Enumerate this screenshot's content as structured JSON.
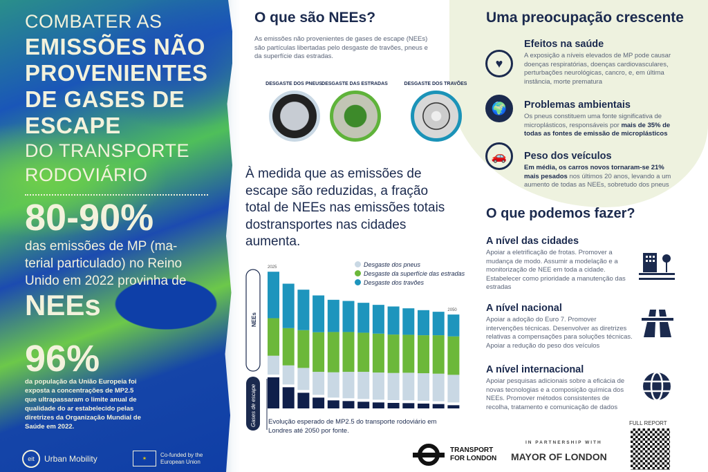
{
  "left": {
    "title_light_1": "COMBATER AS",
    "title_bold": [
      "EMISSÕES NÃO",
      "PROVENIENTES",
      "DE GASES DE",
      "ESCAPE"
    ],
    "title_light_2": "DO TRANSPORTE",
    "title_light_3": "RODOVIÁRIO",
    "stat1_value": "80-90%",
    "stat1_text": "das emissões de MP (ma-terial particulado) no Reino Unido em 2022 provinha de",
    "stat1_tail": "NEEs",
    "stat2_value": "96%",
    "stat2_text": "da população da União Europeia foi exposta a concentrações de MP2.5 que ultrapassaram o limite anual de qualidade do ar estabelecido pelas diretrizes da Organização Mundial de Saúde em 2022.",
    "logo_eit": "eit",
    "logo_urban": "Urban Mobility",
    "eu_text": "Co-funded by the European Union"
  },
  "middle": {
    "title": "O que são NEEs?",
    "desc": "As emissões não provenientes de gases de escape (NEEs) são partículas libertadas pelo desgaste de travões, pneus e da superfície das estradas.",
    "sources": [
      {
        "label": "DESGASTE DOS PNEUS",
        "ring": "#c9d8e4"
      },
      {
        "label": "DESGASTE DAS ESTRADAS",
        "ring": "#5fb33a"
      },
      {
        "label": "DESGASTE DOS TRAVÕES",
        "ring": "#1b93b8"
      }
    ],
    "statement": "À medida que as emissões de escape são reduzidas, a fração total de NEEs nas emissões totais dostransportes nas cidades aumenta.",
    "caption": "Evolução esperado de MP2.5 do transporte rodoviário em Londres até 2050 por fonte."
  },
  "chart_data": {
    "type": "bar",
    "stacked": true,
    "categories": [
      "2025",
      "",
      "",
      "",
      "",
      "",
      "",
      "",
      "",
      "",
      "",
      "",
      "2050"
    ],
    "group_labels": [
      "NEEs",
      "Gases de escape"
    ],
    "series": [
      {
        "key": "escape",
        "color": "#0f1f4a",
        "values": [
          13.5,
          9.2,
          6.8,
          4.7,
          3.5,
          3.2,
          2.9,
          2.6,
          2.4,
          2.3,
          2.1,
          1.9,
          1.4
        ]
      },
      {
        "name": "Desgaste dos pneus",
        "color": "#c9d8e4",
        "values": [
          8.2,
          8.3,
          9.6,
          10,
          11,
          11.5,
          11.8,
          11.8,
          11.8,
          12,
          12,
          12,
          12
        ]
      },
      {
        "name": "Desgaste da superfície das estradas",
        "color": "#6cb83a",
        "values": [
          16.3,
          16.2,
          16.4,
          17.2,
          17.5,
          17.3,
          17,
          16.9,
          16.7,
          16.5,
          16.5,
          16.7,
          16.7
        ]
      },
      {
        "name": "Desgaste dos travões",
        "color": "#1e95bd",
        "values": [
          20.2,
          19.3,
          17.6,
          16,
          14,
          13.5,
          13,
          12.5,
          12.2,
          11.5,
          10.9,
          10.2,
          9.5
        ]
      }
    ],
    "legend": "top-right",
    "grid": false
  },
  "right": {
    "title": "Uma preocupação crescente",
    "items": [
      {
        "icon": "heart-warning-icon",
        "heading": "Efeitos na saúde",
        "text": "A exposição a níveis elevados de MP pode causar doenças respiratórias, doenças cardiovasculares, perturbações neurológicas, cancro, e, em última instância, morte prematura",
        "bold": ""
      },
      {
        "icon": "melting-globe-icon",
        "heading": "Problemas ambientais",
        "text": "Os pneus constituem uma fonte significativa de microplásticos, responsáveis por ",
        "bold": "mais de 35% de todas as fontes de emissão de microplásticos"
      },
      {
        "icon": "car-icon",
        "heading": "Peso dos veículos",
        "bold_first": "Em média, os carros novos tornaram-se 21% mais pesados",
        "text": " nos últimos 20 anos, levando a um aumento de todas as NEEs, sobretudo dos pneus"
      }
    ],
    "actions_title": "O que podemos fazer?",
    "actions": [
      {
        "heading": "A nível das cidades",
        "text": "Apoiar a eletrificação de frotas. Promover a mudança de modo. Assumir a modelação e a monitorização de NEE em toda a cidade. Estabelecer como prioridade a manutenção das estradas",
        "icon": "city-icon"
      },
      {
        "heading": "A nível nacional",
        "text": "Apoiar a adoção do Euro 7. Promover intervenções técnicas. Desenvolver as diretrizes relativas a compensações para soluções técnicas. Apoiar a redução do peso dos veículos",
        "icon": "motorway-icon"
      },
      {
        "heading": "A nível internacional",
        "text": "Apoiar pesquisas adicionais sobre a eficácia de novas tecnologias e a composição química dos NEEs. Promover métodos consistentes de recolha, tratamento e comunicação de dados",
        "icon": "globe-icon"
      }
    ]
  },
  "footer": {
    "tfl": [
      "TRANSPORT",
      "FOR LONDON"
    ],
    "partnership": "IN PARTNERSHIP WITH",
    "mayor": "MAYOR OF LONDON",
    "full_report": "FULL REPORT"
  },
  "colors": {
    "navy": "#1b2a4e",
    "cream": "#f3f2dc",
    "blue": "#1545a8",
    "green": "#6cc84a"
  }
}
